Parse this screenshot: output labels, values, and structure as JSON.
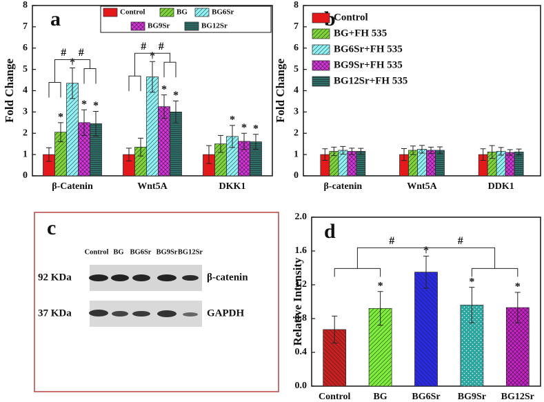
{
  "chart_data": [
    {
      "type": "bar",
      "panel_label": "a",
      "ylabel": "Fold Change",
      "categories": [
        "β-Catenin",
        "Wnt5A",
        "DKK1"
      ],
      "ylim": [
        0,
        8
      ],
      "yticks": [
        0,
        1,
        2,
        3,
        4,
        5,
        6,
        7,
        8
      ],
      "legend": "upper right",
      "series": [
        {
          "name": "Control",
          "color": "#e3191c",
          "pattern": "solid",
          "values": [
            1.0,
            1.0,
            1.0
          ],
          "errors": [
            0.32,
            0.3,
            0.42
          ],
          "markers": [
            null,
            null,
            null
          ]
        },
        {
          "name": "BG",
          "color": "#7fd43a",
          "pattern": "diagonal",
          "values": [
            2.05,
            1.35,
            1.5
          ],
          "errors": [
            0.45,
            0.42,
            0.4
          ],
          "markers": [
            "*",
            null,
            null
          ]
        },
        {
          "name": "BG6Sr",
          "color": "#8ff2f5",
          "pattern": "diagonal",
          "values": [
            4.35,
            4.65,
            1.85
          ],
          "errors": [
            0.72,
            0.72,
            0.52
          ],
          "markers": [
            "*",
            "*",
            "*"
          ]
        },
        {
          "name": "BG9Sr",
          "color": "#d732dc",
          "pattern": "cross",
          "values": [
            2.5,
            3.25,
            1.62
          ],
          "errors": [
            0.6,
            0.55,
            0.38
          ],
          "markers": [
            "*",
            "*",
            "*"
          ]
        },
        {
          "name": "BG12Sr",
          "color": "#2e6f6a",
          "pattern": "horizontal",
          "values": [
            2.45,
            3.0,
            1.6
          ],
          "errors": [
            0.58,
            0.52,
            0.35
          ],
          "markers": [
            "*",
            "*",
            "*"
          ]
        }
      ],
      "brackets": [
        "#",
        "#",
        "#",
        "#"
      ]
    },
    {
      "type": "bar",
      "panel_label": "b",
      "ylabel": "Fold Change",
      "categories": [
        "β-catenin",
        "Wnt5A",
        "DDK1"
      ],
      "ylim": [
        0,
        8
      ],
      "yticks": [
        0,
        1,
        2,
        3,
        4,
        5,
        6,
        7,
        8
      ],
      "legend": "upper right",
      "series": [
        {
          "name": "Control",
          "color": "#e3191c",
          "pattern": "solid",
          "values": [
            1.0,
            1.0,
            1.0
          ],
          "errors": [
            0.27,
            0.28,
            0.27
          ]
        },
        {
          "name": "BG+FH 535",
          "color": "#7fd43a",
          "pattern": "diagonal",
          "values": [
            1.15,
            1.2,
            1.12
          ],
          "errors": [
            0.2,
            0.2,
            0.3
          ]
        },
        {
          "name": "BG6Sr+FH 535",
          "color": "#8ff2f5",
          "pattern": "diagonal",
          "values": [
            1.2,
            1.25,
            1.15
          ],
          "errors": [
            0.18,
            0.18,
            0.18
          ]
        },
        {
          "name": "BG9Sr+FH 535",
          "color": "#d732dc",
          "pattern": "cross",
          "values": [
            1.15,
            1.2,
            1.1
          ],
          "errors": [
            0.15,
            0.15,
            0.13
          ]
        },
        {
          "name": "BG12Sr+FH 535",
          "color": "#2e6f6a",
          "pattern": "horizontal",
          "values": [
            1.15,
            1.2,
            1.12
          ],
          "errors": [
            0.14,
            0.16,
            0.14
          ]
        }
      ]
    },
    {
      "type": "bar",
      "panel_label": "d",
      "ylabel": "Relative Intensity",
      "categories": [
        "Control",
        "BG",
        "BG6Sr",
        "BG9Sr",
        "BG12Sr"
      ],
      "values": [
        0.67,
        0.92,
        1.35,
        0.96,
        0.93
      ],
      "errors": [
        0.16,
        0.2,
        0.19,
        0.21,
        0.18
      ],
      "colors": [
        "#cc1f1f",
        "#7ff03a",
        "#2a2ae6",
        "#2aa6a0",
        "#c820c8"
      ],
      "patterns": [
        "backdiagonal",
        "diagonal",
        "backdiagonal",
        "dots",
        "cross"
      ],
      "markers": [
        null,
        "*",
        "*",
        "*",
        "*"
      ],
      "ylim": [
        0,
        2
      ],
      "yticks": [
        {
          "value": 0,
          "label": "0.0"
        },
        0.4,
        0.8,
        1.2,
        1.6,
        {
          "value": 2,
          "label": "2.0"
        }
      ],
      "brackets": [
        "#",
        "#"
      ]
    }
  ],
  "blot": {
    "panel_label": "c",
    "lanes": [
      "Control",
      "BG",
      "BG6Sr",
      "BG9Sr",
      "BG12Sr"
    ],
    "rows": [
      {
        "size": "92 KDa",
        "protein": "β-catenin"
      },
      {
        "size": "37 KDa",
        "protein": "GAPDH"
      }
    ]
  }
}
